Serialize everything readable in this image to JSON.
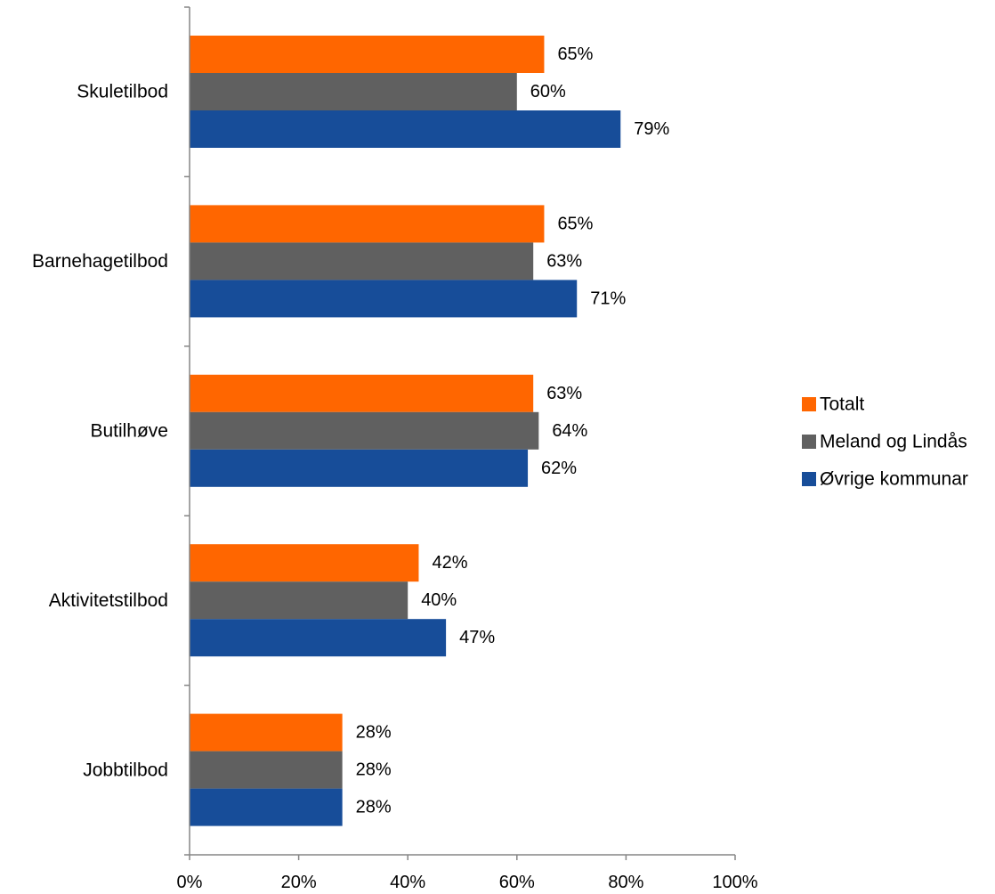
{
  "chart_data": {
    "type": "bar",
    "orientation": "horizontal",
    "title": "",
    "xlabel": "",
    "ylabel": "",
    "categories": [
      "Skuletilbod",
      "Barnehagetilbod",
      "Butilhøve",
      "Aktivitetstilbod",
      "Jobbtilbod"
    ],
    "series": [
      {
        "name": "Totalt",
        "color": "#ff6600",
        "values": [
          65,
          65,
          63,
          42,
          28
        ],
        "labels": [
          "65%",
          "65%",
          "63%",
          "42%",
          "28%"
        ]
      },
      {
        "name": "Meland og Lindås",
        "color": "#606060",
        "values": [
          60,
          63,
          64,
          40,
          28
        ],
        "labels": [
          "60%",
          "63%",
          "64%",
          "40%",
          "28%"
        ]
      },
      {
        "name": "Øvrige kommunar",
        "color": "#174d99",
        "values": [
          79,
          71,
          62,
          47,
          28
        ],
        "labels": [
          "79%",
          "71%",
          "62%",
          "47%",
          "28%"
        ]
      }
    ],
    "xlim": [
      0,
      100
    ],
    "xticks": [
      0,
      20,
      40,
      60,
      80,
      100
    ],
    "xtick_labels": [
      "0%",
      "20%",
      "40%",
      "60%",
      "80%",
      "100%"
    ],
    "grid": false,
    "legend_position": "right"
  }
}
